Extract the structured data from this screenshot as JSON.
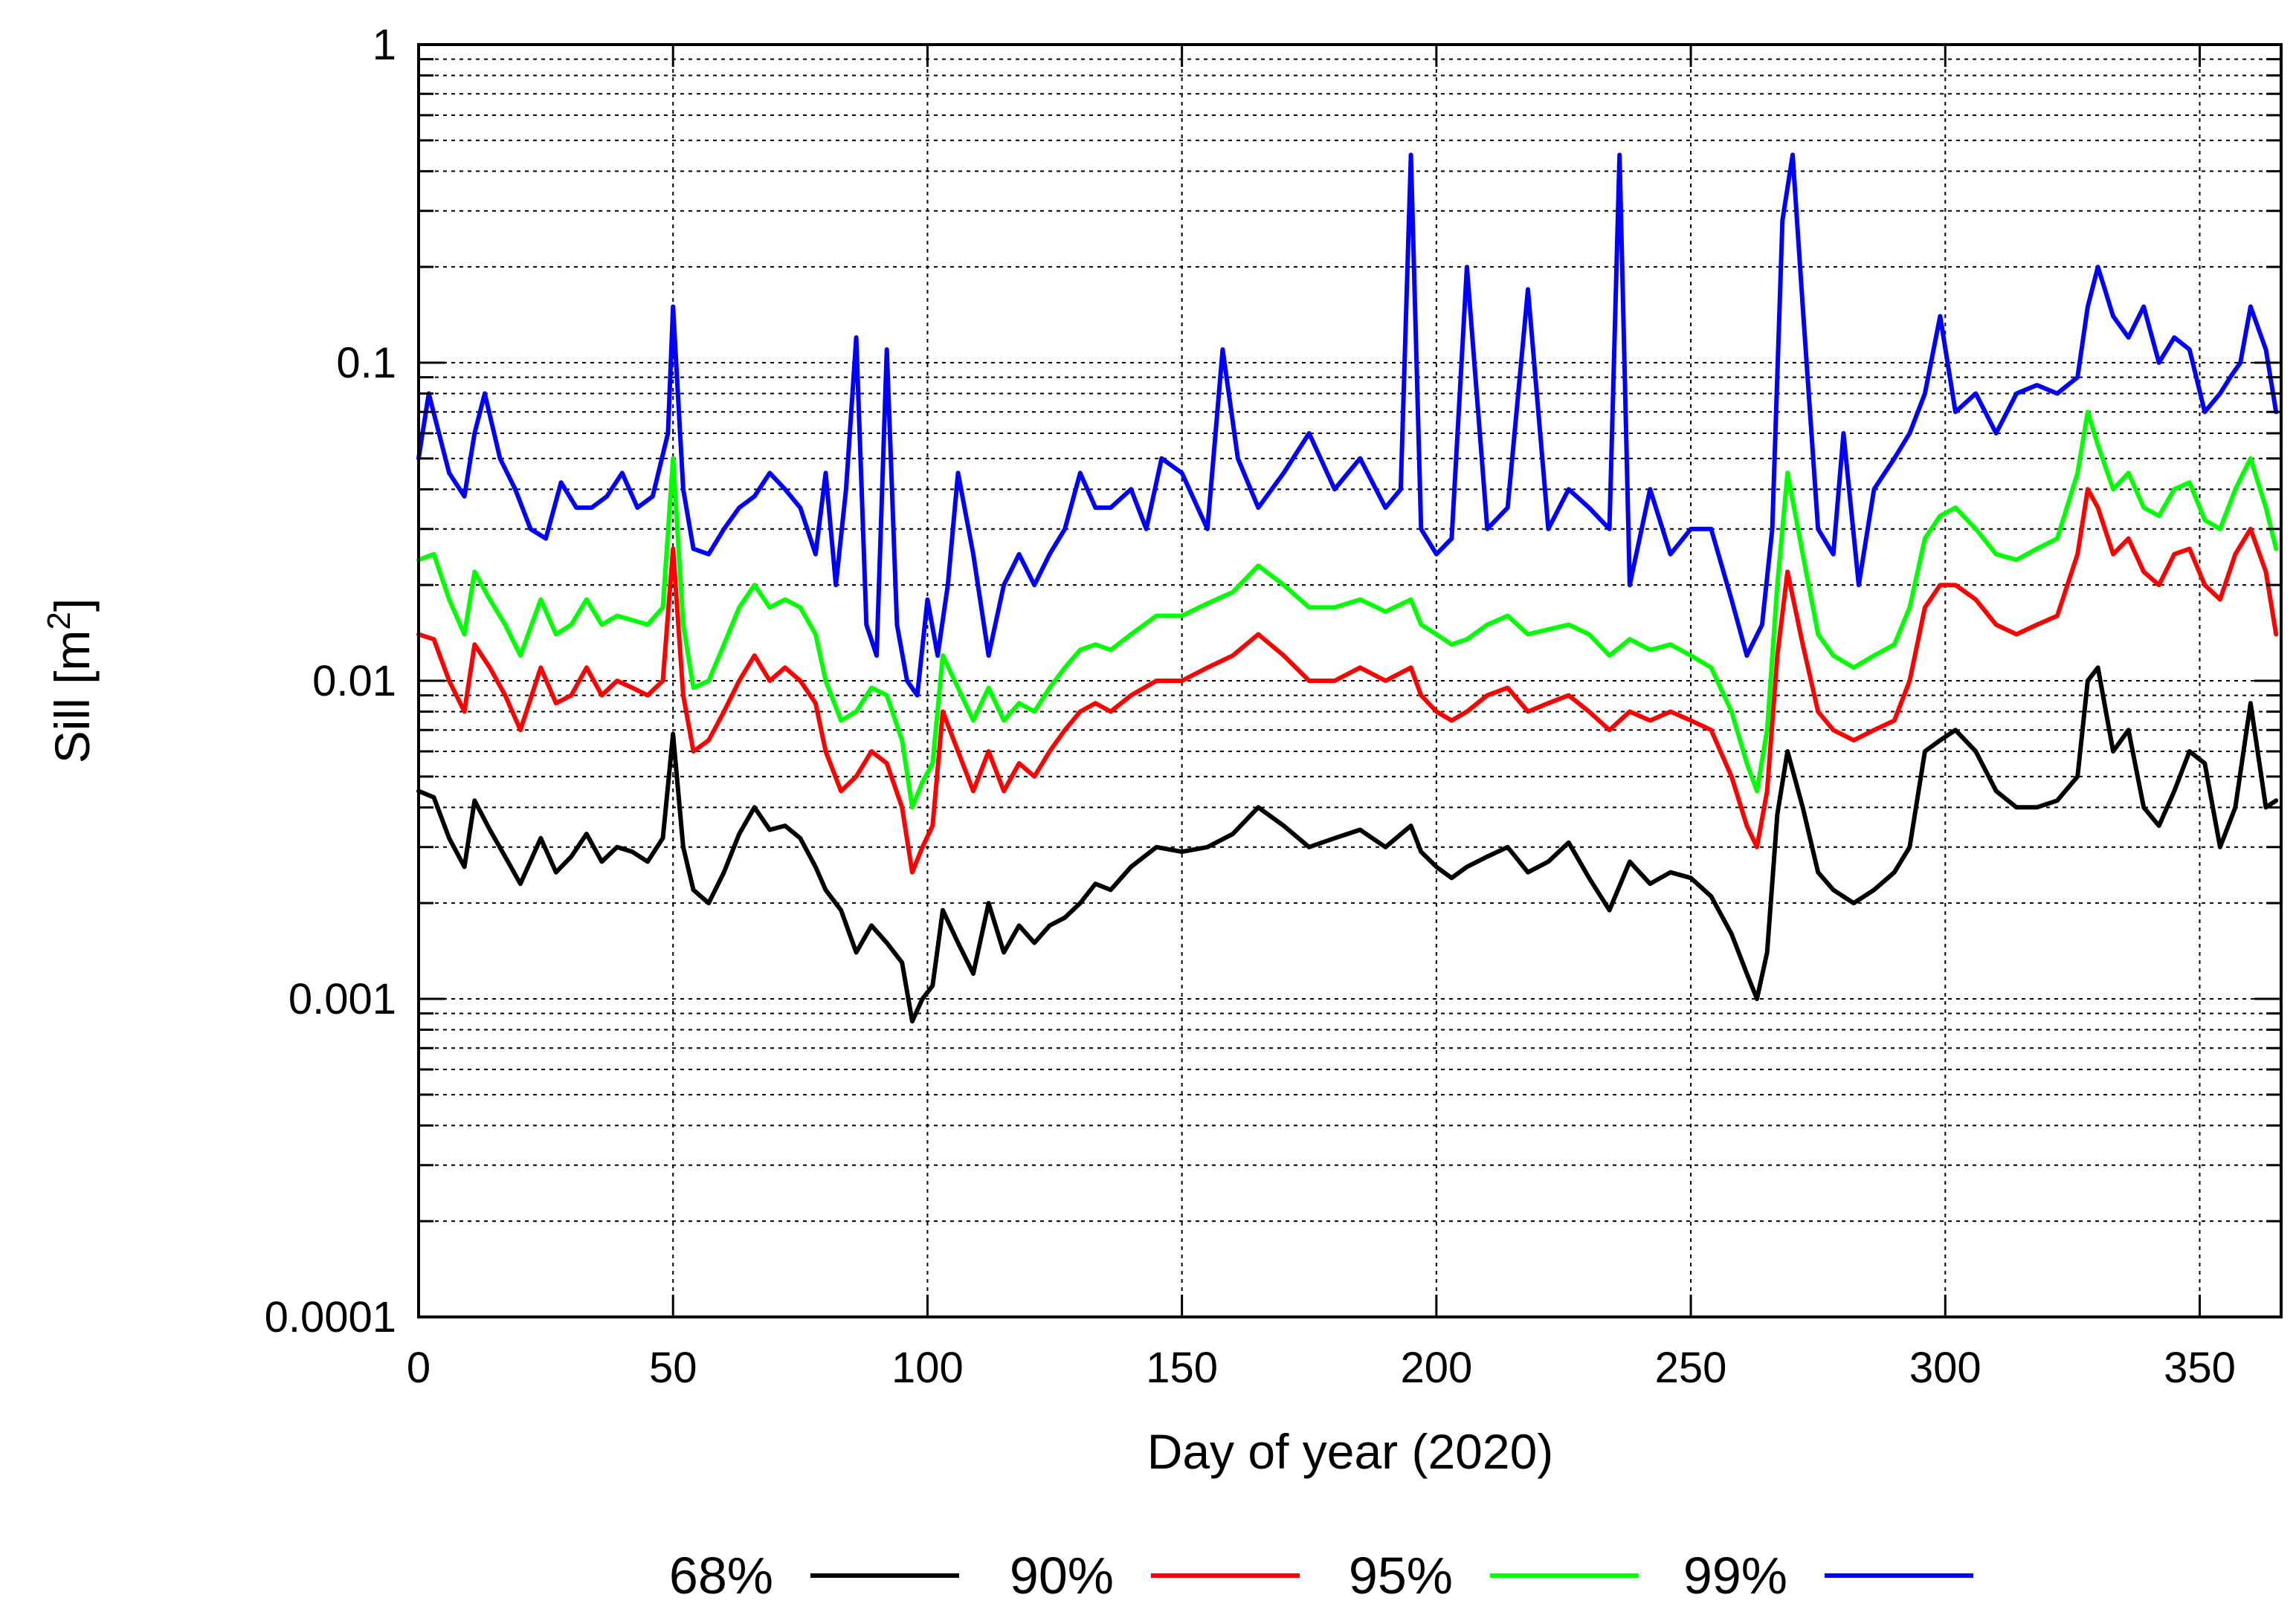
{
  "chart_data": {
    "type": "line",
    "title": "",
    "xlabel": "Day of year (2020)",
    "ylabel": "Sill [m2]",
    "ylabel_base": "Sill [m",
    "ylabel_sup": "2",
    "ylabel_tail": "]",
    "xlim": [
      0,
      366
    ],
    "ylim": [
      0.0001,
      1
    ],
    "yscale": "log",
    "grid": true,
    "legend_position": "bottom",
    "x_ticks": [
      {
        "value": 0,
        "label": "0"
      },
      {
        "value": 50,
        "label": "50"
      },
      {
        "value": 100,
        "label": "100"
      },
      {
        "value": 150,
        "label": "150"
      },
      {
        "value": 200,
        "label": "200"
      },
      {
        "value": 250,
        "label": "250"
      },
      {
        "value": 300,
        "label": "300"
      },
      {
        "value": 350,
        "label": "350"
      }
    ],
    "y_ticks": [
      {
        "value": 0.0001,
        "label": "0.0001"
      },
      {
        "value": 0.001,
        "label": "0.001"
      },
      {
        "value": 0.01,
        "label": "0.01"
      },
      {
        "value": 0.1,
        "label": "0.1"
      },
      {
        "value": 1,
        "label": "1"
      }
    ],
    "series": [
      {
        "name": "68%",
        "color": "#000000",
        "x": [
          0,
          3,
          6,
          9,
          11,
          14,
          17,
          20,
          24,
          27,
          30,
          33,
          36,
          39,
          42,
          45,
          48,
          50,
          52,
          54,
          57,
          60,
          63,
          66,
          69,
          72,
          75,
          78,
          80,
          83,
          86,
          89,
          92,
          95,
          97,
          99,
          101,
          103,
          106,
          109,
          112,
          115,
          118,
          121,
          124,
          127,
          130,
          133,
          136,
          140,
          145,
          150,
          155,
          160,
          165,
          170,
          175,
          180,
          185,
          190,
          195,
          197,
          200,
          203,
          206,
          210,
          214,
          218,
          222,
          226,
          230,
          234,
          238,
          242,
          246,
          250,
          254,
          258,
          261,
          263,
          265,
          267,
          269,
          272,
          275,
          278,
          282,
          286,
          290,
          293,
          296,
          299,
          302,
          306,
          310,
          314,
          318,
          322,
          326,
          328,
          330,
          333,
          336,
          339,
          342,
          345,
          348,
          351,
          354,
          357,
          360,
          363,
          365
        ],
        "values": [
          0.0045,
          0.0043,
          0.0032,
          0.0026,
          0.0042,
          0.0034,
          0.0028,
          0.0023,
          0.0032,
          0.0025,
          0.0028,
          0.0033,
          0.0027,
          0.003,
          0.0029,
          0.0027,
          0.0032,
          0.0068,
          0.003,
          0.0022,
          0.002,
          0.0025,
          0.0033,
          0.004,
          0.0034,
          0.0035,
          0.0032,
          0.0026,
          0.0022,
          0.0019,
          0.0014,
          0.0017,
          0.0015,
          0.0013,
          0.00085,
          0.001,
          0.0011,
          0.0019,
          0.0015,
          0.0012,
          0.002,
          0.0014,
          0.0017,
          0.0015,
          0.0017,
          0.0018,
          0.002,
          0.0023,
          0.0022,
          0.0026,
          0.003,
          0.0029,
          0.003,
          0.0033,
          0.004,
          0.0035,
          0.003,
          0.0032,
          0.0034,
          0.003,
          0.0035,
          0.0029,
          0.0026,
          0.0024,
          0.0026,
          0.0028,
          0.003,
          0.0025,
          0.0027,
          0.0031,
          0.0024,
          0.0019,
          0.0027,
          0.0023,
          0.0025,
          0.0024,
          0.0021,
          0.0016,
          0.0012,
          0.001,
          0.0014,
          0.0038,
          0.006,
          0.004,
          0.0025,
          0.0022,
          0.002,
          0.0022,
          0.0025,
          0.003,
          0.006,
          0.0065,
          0.007,
          0.006,
          0.0045,
          0.004,
          0.004,
          0.0042,
          0.005,
          0.01,
          0.011,
          0.006,
          0.007,
          0.004,
          0.0035,
          0.0045,
          0.006,
          0.0055,
          0.003,
          0.004,
          0.0085,
          0.004,
          0.0042
        ]
      },
      {
        "name": "90%",
        "color": "#ff0000",
        "x": [
          0,
          3,
          6,
          9,
          11,
          14,
          17,
          20,
          24,
          27,
          30,
          33,
          36,
          39,
          42,
          45,
          48,
          50,
          52,
          54,
          57,
          60,
          63,
          66,
          69,
          72,
          75,
          78,
          80,
          83,
          86,
          89,
          92,
          95,
          97,
          99,
          101,
          103,
          106,
          109,
          112,
          115,
          118,
          121,
          124,
          127,
          130,
          133,
          136,
          140,
          145,
          150,
          155,
          160,
          165,
          170,
          175,
          180,
          185,
          190,
          195,
          197,
          200,
          203,
          206,
          210,
          214,
          218,
          222,
          226,
          230,
          234,
          238,
          242,
          246,
          250,
          254,
          258,
          261,
          263,
          265,
          267,
          269,
          272,
          275,
          278,
          282,
          286,
          290,
          293,
          296,
          299,
          302,
          306,
          310,
          314,
          318,
          322,
          326,
          328,
          330,
          333,
          336,
          339,
          342,
          345,
          348,
          351,
          354,
          357,
          360,
          363,
          365
        ],
        "values": [
          0.014,
          0.0135,
          0.01,
          0.008,
          0.013,
          0.011,
          0.009,
          0.007,
          0.011,
          0.0085,
          0.009,
          0.011,
          0.009,
          0.01,
          0.0095,
          0.009,
          0.01,
          0.026,
          0.009,
          0.006,
          0.0065,
          0.008,
          0.01,
          0.012,
          0.01,
          0.011,
          0.01,
          0.0085,
          0.006,
          0.0045,
          0.005,
          0.006,
          0.0055,
          0.004,
          0.0025,
          0.003,
          0.0035,
          0.008,
          0.006,
          0.0045,
          0.006,
          0.0045,
          0.0055,
          0.005,
          0.006,
          0.007,
          0.008,
          0.0085,
          0.008,
          0.009,
          0.01,
          0.01,
          0.011,
          0.012,
          0.014,
          0.012,
          0.01,
          0.01,
          0.011,
          0.01,
          0.011,
          0.009,
          0.008,
          0.0075,
          0.008,
          0.009,
          0.0095,
          0.008,
          0.0085,
          0.009,
          0.008,
          0.007,
          0.008,
          0.0075,
          0.008,
          0.0075,
          0.007,
          0.005,
          0.0035,
          0.003,
          0.0045,
          0.012,
          0.022,
          0.013,
          0.008,
          0.007,
          0.0065,
          0.007,
          0.0075,
          0.01,
          0.017,
          0.02,
          0.02,
          0.018,
          0.015,
          0.014,
          0.015,
          0.016,
          0.025,
          0.04,
          0.035,
          0.025,
          0.028,
          0.022,
          0.02,
          0.025,
          0.026,
          0.02,
          0.018,
          0.025,
          0.03,
          0.022,
          0.014
        ]
      },
      {
        "name": "95%",
        "color": "#00ff00",
        "x": [
          0,
          3,
          6,
          9,
          11,
          14,
          17,
          20,
          24,
          27,
          30,
          33,
          36,
          39,
          42,
          45,
          48,
          50,
          52,
          54,
          57,
          60,
          63,
          66,
          69,
          72,
          75,
          78,
          80,
          83,
          86,
          89,
          92,
          95,
          97,
          99,
          101,
          103,
          106,
          109,
          112,
          115,
          118,
          121,
          124,
          127,
          130,
          133,
          136,
          140,
          145,
          150,
          155,
          160,
          165,
          170,
          175,
          180,
          185,
          190,
          195,
          197,
          200,
          203,
          206,
          210,
          214,
          218,
          222,
          226,
          230,
          234,
          238,
          242,
          246,
          250,
          254,
          258,
          261,
          263,
          265,
          267,
          269,
          272,
          275,
          278,
          282,
          286,
          290,
          293,
          296,
          299,
          302,
          306,
          310,
          314,
          318,
          322,
          326,
          328,
          330,
          333,
          336,
          339,
          342,
          345,
          348,
          351,
          354,
          357,
          360,
          363,
          365
        ],
        "values": [
          0.024,
          0.025,
          0.018,
          0.014,
          0.022,
          0.018,
          0.015,
          0.012,
          0.018,
          0.014,
          0.015,
          0.018,
          0.015,
          0.016,
          0.0155,
          0.015,
          0.017,
          0.05,
          0.015,
          0.0095,
          0.01,
          0.013,
          0.017,
          0.02,
          0.017,
          0.018,
          0.017,
          0.014,
          0.01,
          0.0075,
          0.008,
          0.0095,
          0.009,
          0.0065,
          0.004,
          0.0048,
          0.0055,
          0.012,
          0.0095,
          0.0075,
          0.0095,
          0.0075,
          0.0085,
          0.008,
          0.0095,
          0.011,
          0.0125,
          0.013,
          0.0125,
          0.014,
          0.016,
          0.016,
          0.0175,
          0.019,
          0.023,
          0.02,
          0.017,
          0.017,
          0.018,
          0.0165,
          0.018,
          0.015,
          0.014,
          0.013,
          0.0135,
          0.015,
          0.016,
          0.014,
          0.0145,
          0.015,
          0.014,
          0.012,
          0.0135,
          0.0125,
          0.013,
          0.012,
          0.011,
          0.008,
          0.0055,
          0.0045,
          0.007,
          0.02,
          0.045,
          0.025,
          0.014,
          0.012,
          0.011,
          0.012,
          0.013,
          0.017,
          0.028,
          0.033,
          0.035,
          0.03,
          0.025,
          0.024,
          0.026,
          0.028,
          0.045,
          0.07,
          0.055,
          0.04,
          0.045,
          0.035,
          0.033,
          0.04,
          0.042,
          0.032,
          0.03,
          0.04,
          0.05,
          0.035,
          0.026
        ]
      },
      {
        "name": "99%",
        "color": "#0000ff",
        "x": [
          0,
          2,
          4,
          6,
          9,
          11,
          13,
          16,
          19,
          22,
          25,
          28,
          31,
          34,
          37,
          40,
          43,
          46,
          49,
          50,
          52,
          54,
          57,
          60,
          63,
          66,
          69,
          72,
          75,
          78,
          80,
          82,
          84,
          86,
          88,
          90,
          92,
          94,
          96,
          98,
          100,
          102,
          104,
          106,
          109,
          112,
          115,
          118,
          121,
          124,
          127,
          130,
          133,
          136,
          140,
          143,
          146,
          150,
          155,
          158,
          161,
          165,
          170,
          175,
          180,
          185,
          190,
          193,
          195,
          197,
          200,
          203,
          206,
          210,
          214,
          218,
          222,
          226,
          230,
          234,
          236,
          238,
          242,
          246,
          250,
          254,
          258,
          261,
          264,
          266,
          268,
          270,
          272,
          275,
          278,
          280,
          283,
          286,
          290,
          293,
          296,
          299,
          302,
          306,
          310,
          314,
          318,
          322,
          326,
          328,
          330,
          333,
          336,
          339,
          342,
          345,
          348,
          351,
          354,
          356,
          358,
          360,
          363,
          365
        ],
        "values": [
          0.05,
          0.08,
          0.06,
          0.045,
          0.038,
          0.06,
          0.08,
          0.05,
          0.04,
          0.03,
          0.028,
          0.042,
          0.035,
          0.035,
          0.038,
          0.045,
          0.035,
          0.038,
          0.06,
          0.15,
          0.04,
          0.026,
          0.025,
          0.03,
          0.035,
          0.038,
          0.045,
          0.04,
          0.035,
          0.025,
          0.045,
          0.02,
          0.04,
          0.12,
          0.015,
          0.012,
          0.11,
          0.015,
          0.01,
          0.009,
          0.018,
          0.012,
          0.02,
          0.045,
          0.025,
          0.012,
          0.02,
          0.025,
          0.02,
          0.025,
          0.03,
          0.045,
          0.035,
          0.035,
          0.04,
          0.03,
          0.05,
          0.045,
          0.03,
          0.11,
          0.05,
          0.035,
          0.045,
          0.06,
          0.04,
          0.05,
          0.035,
          0.04,
          0.45,
          0.03,
          0.025,
          0.028,
          0.2,
          0.03,
          0.035,
          0.17,
          0.03,
          0.04,
          0.035,
          0.03,
          0.45,
          0.02,
          0.04,
          0.025,
          0.03,
          0.03,
          0.018,
          0.012,
          0.015,
          0.03,
          0.28,
          0.45,
          0.15,
          0.03,
          0.025,
          0.06,
          0.02,
          0.04,
          0.05,
          0.06,
          0.08,
          0.14,
          0.07,
          0.08,
          0.06,
          0.08,
          0.085,
          0.08,
          0.09,
          0.15,
          0.2,
          0.14,
          0.12,
          0.15,
          0.1,
          0.12,
          0.11,
          0.07,
          0.08,
          0.09,
          0.1,
          0.15,
          0.11,
          0.07
        ]
      }
    ]
  }
}
